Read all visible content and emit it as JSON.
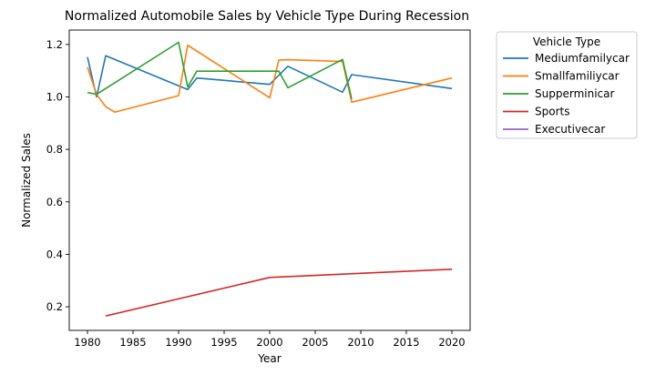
{
  "chart_data": {
    "type": "line",
    "title": "Normalized Automobile Sales by Vehicle Type During Recession",
    "xlabel": "Year",
    "ylabel": "Normalized Sales",
    "xlim": [
      1978,
      2022
    ],
    "ylim": [
      0.11,
      1.255
    ],
    "xticks": [
      1980,
      1985,
      1990,
      1995,
      2000,
      2005,
      2010,
      2015,
      2020
    ],
    "yticks": [
      0.2,
      0.4,
      0.6,
      0.8,
      1.0,
      1.2
    ],
    "ytick_labels": [
      "0.2",
      "0.4",
      "0.6",
      "0.8",
      "1.0",
      "1.2"
    ],
    "grid": false,
    "legend": {
      "title": "Vehicle Type",
      "placement": "outside-upper-right"
    },
    "series": [
      {
        "name": "Mediumfamilycar",
        "color": "#1f77b4",
        "x": [
          1980,
          1981,
          1982,
          1991,
          1992,
          2000,
          2002,
          2008,
          2009,
          2020
        ],
        "y": [
          1.152,
          1.0,
          1.157,
          1.028,
          1.072,
          1.048,
          1.117,
          1.018,
          1.085,
          1.032
        ]
      },
      {
        "name": "Smallfamiliycar",
        "color": "#ff7f0e",
        "x": [
          1980,
          1981,
          1982,
          1983,
          1990,
          1991,
          2000,
          2001,
          2002,
          2008,
          2009,
          2020
        ],
        "y": [
          1.113,
          1.01,
          0.963,
          0.942,
          1.005,
          1.197,
          0.997,
          1.14,
          1.142,
          1.135,
          0.98,
          1.072
        ]
      },
      {
        "name": "Supperminicar",
        "color": "#2ca02c",
        "x": [
          1980,
          1981,
          1990,
          1991,
          1992,
          2000,
          2001,
          2002,
          2008,
          2009
        ],
        "y": [
          1.017,
          1.01,
          1.208,
          1.038,
          1.098,
          1.098,
          1.098,
          1.035,
          1.143,
          0.992
        ]
      },
      {
        "name": "Sports",
        "color": "#d62728",
        "x": [
          1982,
          2000,
          2020
        ],
        "y": [
          0.165,
          0.312,
          0.343
        ]
      },
      {
        "name": "Executivecar",
        "color": "#9467bd",
        "x": [],
        "y": []
      }
    ]
  }
}
